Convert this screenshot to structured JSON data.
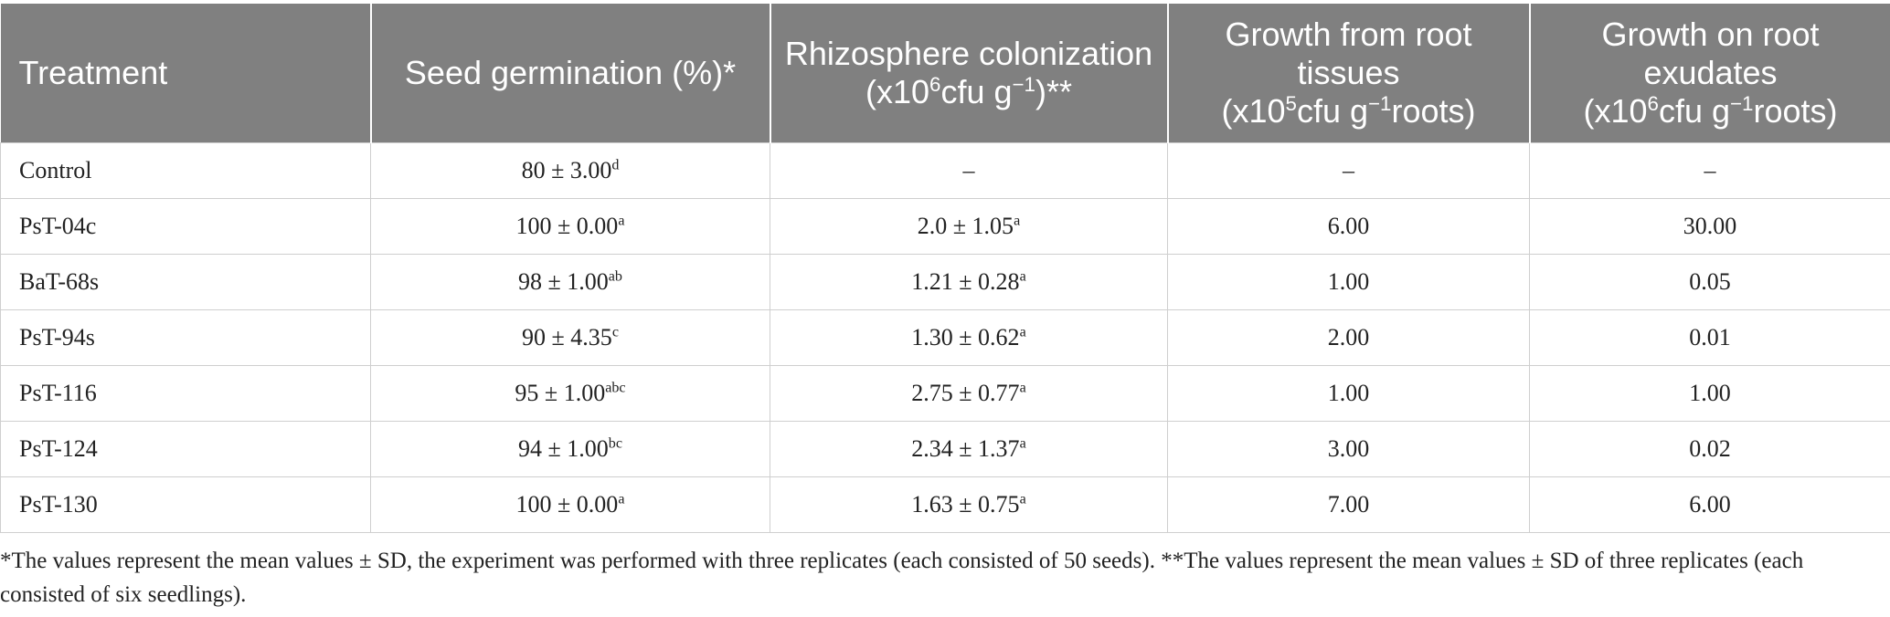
{
  "header": {
    "treatment": "Treatment",
    "seed_germination": {
      "main": "Seed germination (%)",
      "suffix": "*"
    },
    "rhizosphere": {
      "line1": "Rhizosphere colonization",
      "prefix": "(x10",
      "exp": "6",
      "mid": "cfu g",
      "unit_exp": "−1",
      "suffix": ")**"
    },
    "root_tissues": {
      "line1": "Growth from root tissues",
      "prefix": "(x10",
      "exp": "5",
      "mid": "cfu g",
      "unit_exp": "−1",
      "suffix": "roots)"
    },
    "root_exudates": {
      "line1": "Growth on root exudates",
      "prefix": "(x10",
      "exp": "6",
      "mid": "cfu g",
      "unit_exp": "−1",
      "suffix": "roots)"
    }
  },
  "rows": [
    {
      "treatment": "Control",
      "germ": "80 ± 3.00",
      "germ_sup": "d",
      "rhizo": "–",
      "rhizo_sup": "",
      "tissue": "–",
      "exudate": "–"
    },
    {
      "treatment": "PsT-04c",
      "germ": "100 ± 0.00",
      "germ_sup": "a",
      "rhizo": "2.0 ± 1.05",
      "rhizo_sup": "a",
      "tissue": "6.00",
      "exudate": "30.00"
    },
    {
      "treatment": "BaT-68s",
      "germ": "98 ± 1.00",
      "germ_sup": "ab",
      "rhizo": "1.21 ± 0.28",
      "rhizo_sup": "a",
      "tissue": "1.00",
      "exudate": "0.05"
    },
    {
      "treatment": "PsT-94s",
      "germ": "90 ± 4.35",
      "germ_sup": "c",
      "rhizo": "1.30 ± 0.62",
      "rhizo_sup": "a",
      "tissue": "2.00",
      "exudate": "0.01"
    },
    {
      "treatment": "PsT-116",
      "germ": "95 ± 1.00",
      "germ_sup": "abc",
      "rhizo": "2.75 ± 0.77",
      "rhizo_sup": "a",
      "tissue": "1.00",
      "exudate": "1.00"
    },
    {
      "treatment": "PsT-124",
      "germ": "94 ± 1.00",
      "germ_sup": "bc",
      "rhizo": "2.34 ± 1.37",
      "rhizo_sup": "a",
      "tissue": "3.00",
      "exudate": "0.02"
    },
    {
      "treatment": "PsT-130",
      "germ": "100 ± 0.00",
      "germ_sup": "a",
      "rhizo": "1.63 ± 0.75",
      "rhizo_sup": "a",
      "tissue": "7.00",
      "exudate": "6.00"
    }
  ],
  "footnote": "*The values represent the mean values ± SD, the experiment was performed with three replicates (each consisted of 50 seeds). **The values represent the mean values ± SD of three replicates (each consisted of six seedlings)."
}
